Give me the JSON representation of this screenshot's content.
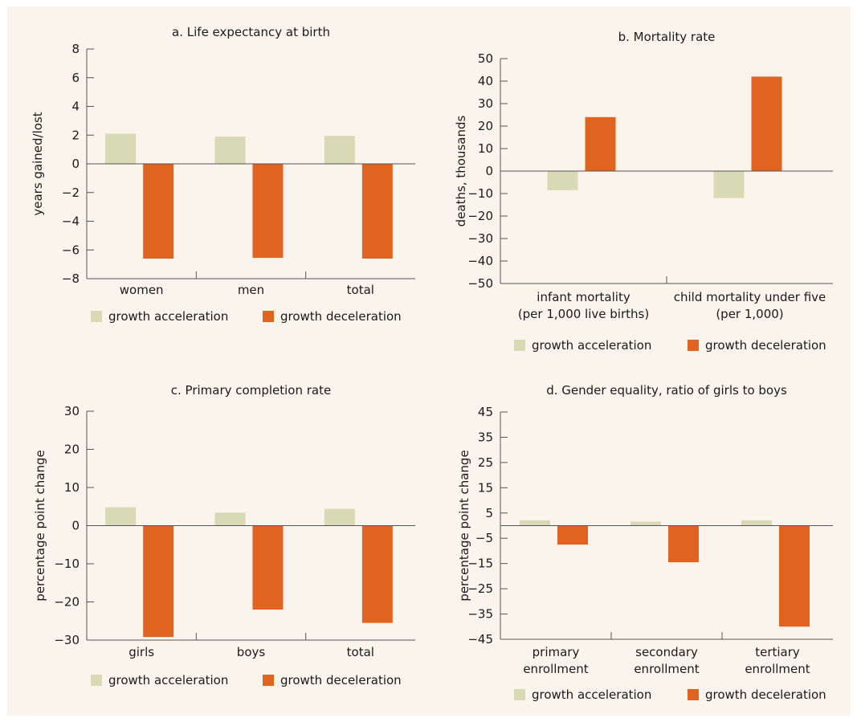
{
  "colors": {
    "acceleration": "#d8dab6",
    "deceleration": "#e0631f",
    "background": "#faf4ec"
  },
  "legend": {
    "acceleration": "growth acceleration",
    "deceleration": "growth deceleration"
  },
  "chart_data": [
    {
      "type": "bar",
      "title": "a. Life expectancy at birth",
      "ylabel": "years gained/lost",
      "ylim": [
        -8,
        8
      ],
      "yticks": [
        8,
        6,
        4,
        2,
        0,
        -2,
        -4,
        -6,
        -8
      ],
      "categories": [
        [
          "women"
        ],
        [
          "men"
        ],
        [
          "total"
        ]
      ],
      "series": [
        {
          "name": "growth acceleration",
          "values": [
            2.1,
            1.9,
            1.95
          ]
        },
        {
          "name": "growth deceleration",
          "values": [
            -6.6,
            -6.55,
            -6.6
          ]
        }
      ]
    },
    {
      "type": "bar",
      "title": "b. Mortality rate",
      "ylabel": "deaths, thousands",
      "ylim": [
        -50,
        50
      ],
      "yticks": [
        50,
        40,
        30,
        20,
        10,
        0,
        -10,
        -20,
        -30,
        -40,
        -50
      ],
      "categories": [
        [
          "infant mortality",
          "(per 1,000 live births)"
        ],
        [
          "child mortality under five",
          "(per 1,000)"
        ]
      ],
      "series": [
        {
          "name": "growth acceleration",
          "values": [
            -8.5,
            -12
          ]
        },
        {
          "name": "growth deceleration",
          "values": [
            24,
            42
          ]
        }
      ]
    },
    {
      "type": "bar",
      "title": "c. Primary completion rate",
      "ylabel": "percentage point change",
      "ylim": [
        -30,
        30
      ],
      "yticks": [
        30,
        20,
        10,
        0,
        -10,
        -20,
        -30
      ],
      "categories": [
        [
          "girls"
        ],
        [
          "boys"
        ],
        [
          "total"
        ]
      ],
      "series": [
        {
          "name": "growth acceleration",
          "values": [
            4.8,
            3.4,
            4.4
          ]
        },
        {
          "name": "growth deceleration",
          "values": [
            -29.2,
            -22,
            -25.5
          ]
        }
      ]
    },
    {
      "type": "bar",
      "title": "d. Gender equality, ratio of girls to boys",
      "ylabel": "percentage point change",
      "ylim": [
        -45,
        45
      ],
      "yticks": [
        45,
        35,
        25,
        15,
        5,
        -5,
        -15,
        -25,
        -35,
        -45
      ],
      "categories": [
        [
          "primary",
          "enrollment"
        ],
        [
          "secondary",
          "enrollment"
        ],
        [
          "tertiary",
          "enrollment"
        ]
      ],
      "series": [
        {
          "name": "growth acceleration",
          "values": [
            2.1,
            1.6,
            2.1
          ]
        },
        {
          "name": "growth deceleration",
          "values": [
            -7.5,
            -14.5,
            -40
          ]
        }
      ]
    }
  ]
}
